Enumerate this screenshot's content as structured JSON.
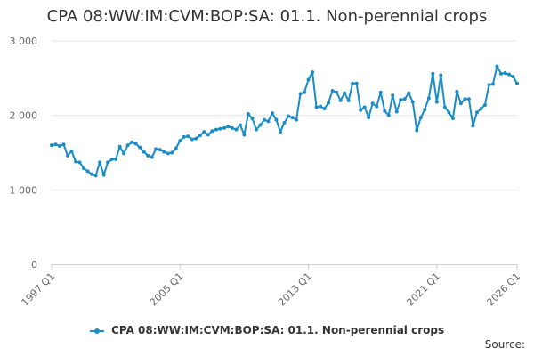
{
  "chart_data": {
    "type": "line",
    "title": "CPA 08:WW:IM:CVM:BOP:SA: 01.1. Non-perennial crops",
    "xlabel": "",
    "ylabel": "",
    "x_start": "1997 Q1",
    "x_end": "2026 Q1",
    "x_tick_labels": [
      "1997 Q1",
      "2005 Q1",
      "2013 Q1",
      "2021 Q1",
      "2026 Q1"
    ],
    "y_tick_labels": [
      "0",
      "1 000",
      "2 000",
      "3 000"
    ],
    "ylim": [
      0,
      3000
    ],
    "grid": "horizontal",
    "legend_position": "bottom",
    "color": "#1a8cc7",
    "series": [
      {
        "name": "CPA 08:WW:IM:CVM:BOP:SA: 01.1. Non-perennial crops",
        "values": [
          1600,
          1610,
          1590,
          1610,
          1460,
          1520,
          1380,
          1370,
          1290,
          1250,
          1210,
          1190,
          1370,
          1200,
          1370,
          1410,
          1410,
          1580,
          1490,
          1600,
          1640,
          1620,
          1570,
          1510,
          1460,
          1440,
          1550,
          1540,
          1510,
          1490,
          1500,
          1560,
          1660,
          1710,
          1720,
          1680,
          1690,
          1730,
          1780,
          1740,
          1790,
          1810,
          1820,
          1830,
          1850,
          1830,
          1810,
          1870,
          1740,
          2020,
          1960,
          1810,
          1870,
          1940,
          1920,
          2030,
          1940,
          1780,
          1900,
          1990,
          1970,
          1940,
          2290,
          2310,
          2480,
          2580,
          2110,
          2120,
          2090,
          2170,
          2330,
          2310,
          2200,
          2300,
          2200,
          2430,
          2430,
          2070,
          2110,
          1970,
          2160,
          2120,
          2310,
          2060,
          2000,
          2270,
          2050,
          2210,
          2220,
          2300,
          2180,
          1800,
          1970,
          2080,
          2230,
          2560,
          2180,
          2540,
          2110,
          2040,
          1960,
          2320,
          2160,
          2220,
          2220,
          1860,
          2040,
          2090,
          2140,
          2410,
          2420,
          2660,
          2560,
          2570,
          2550,
          2520,
          2430
        ]
      }
    ]
  },
  "legend": {
    "label": "CPA 08:WW:IM:CVM:BOP:SA: 01.1. Non-perennial crops"
  },
  "footer": {
    "source_label": "Source:"
  }
}
